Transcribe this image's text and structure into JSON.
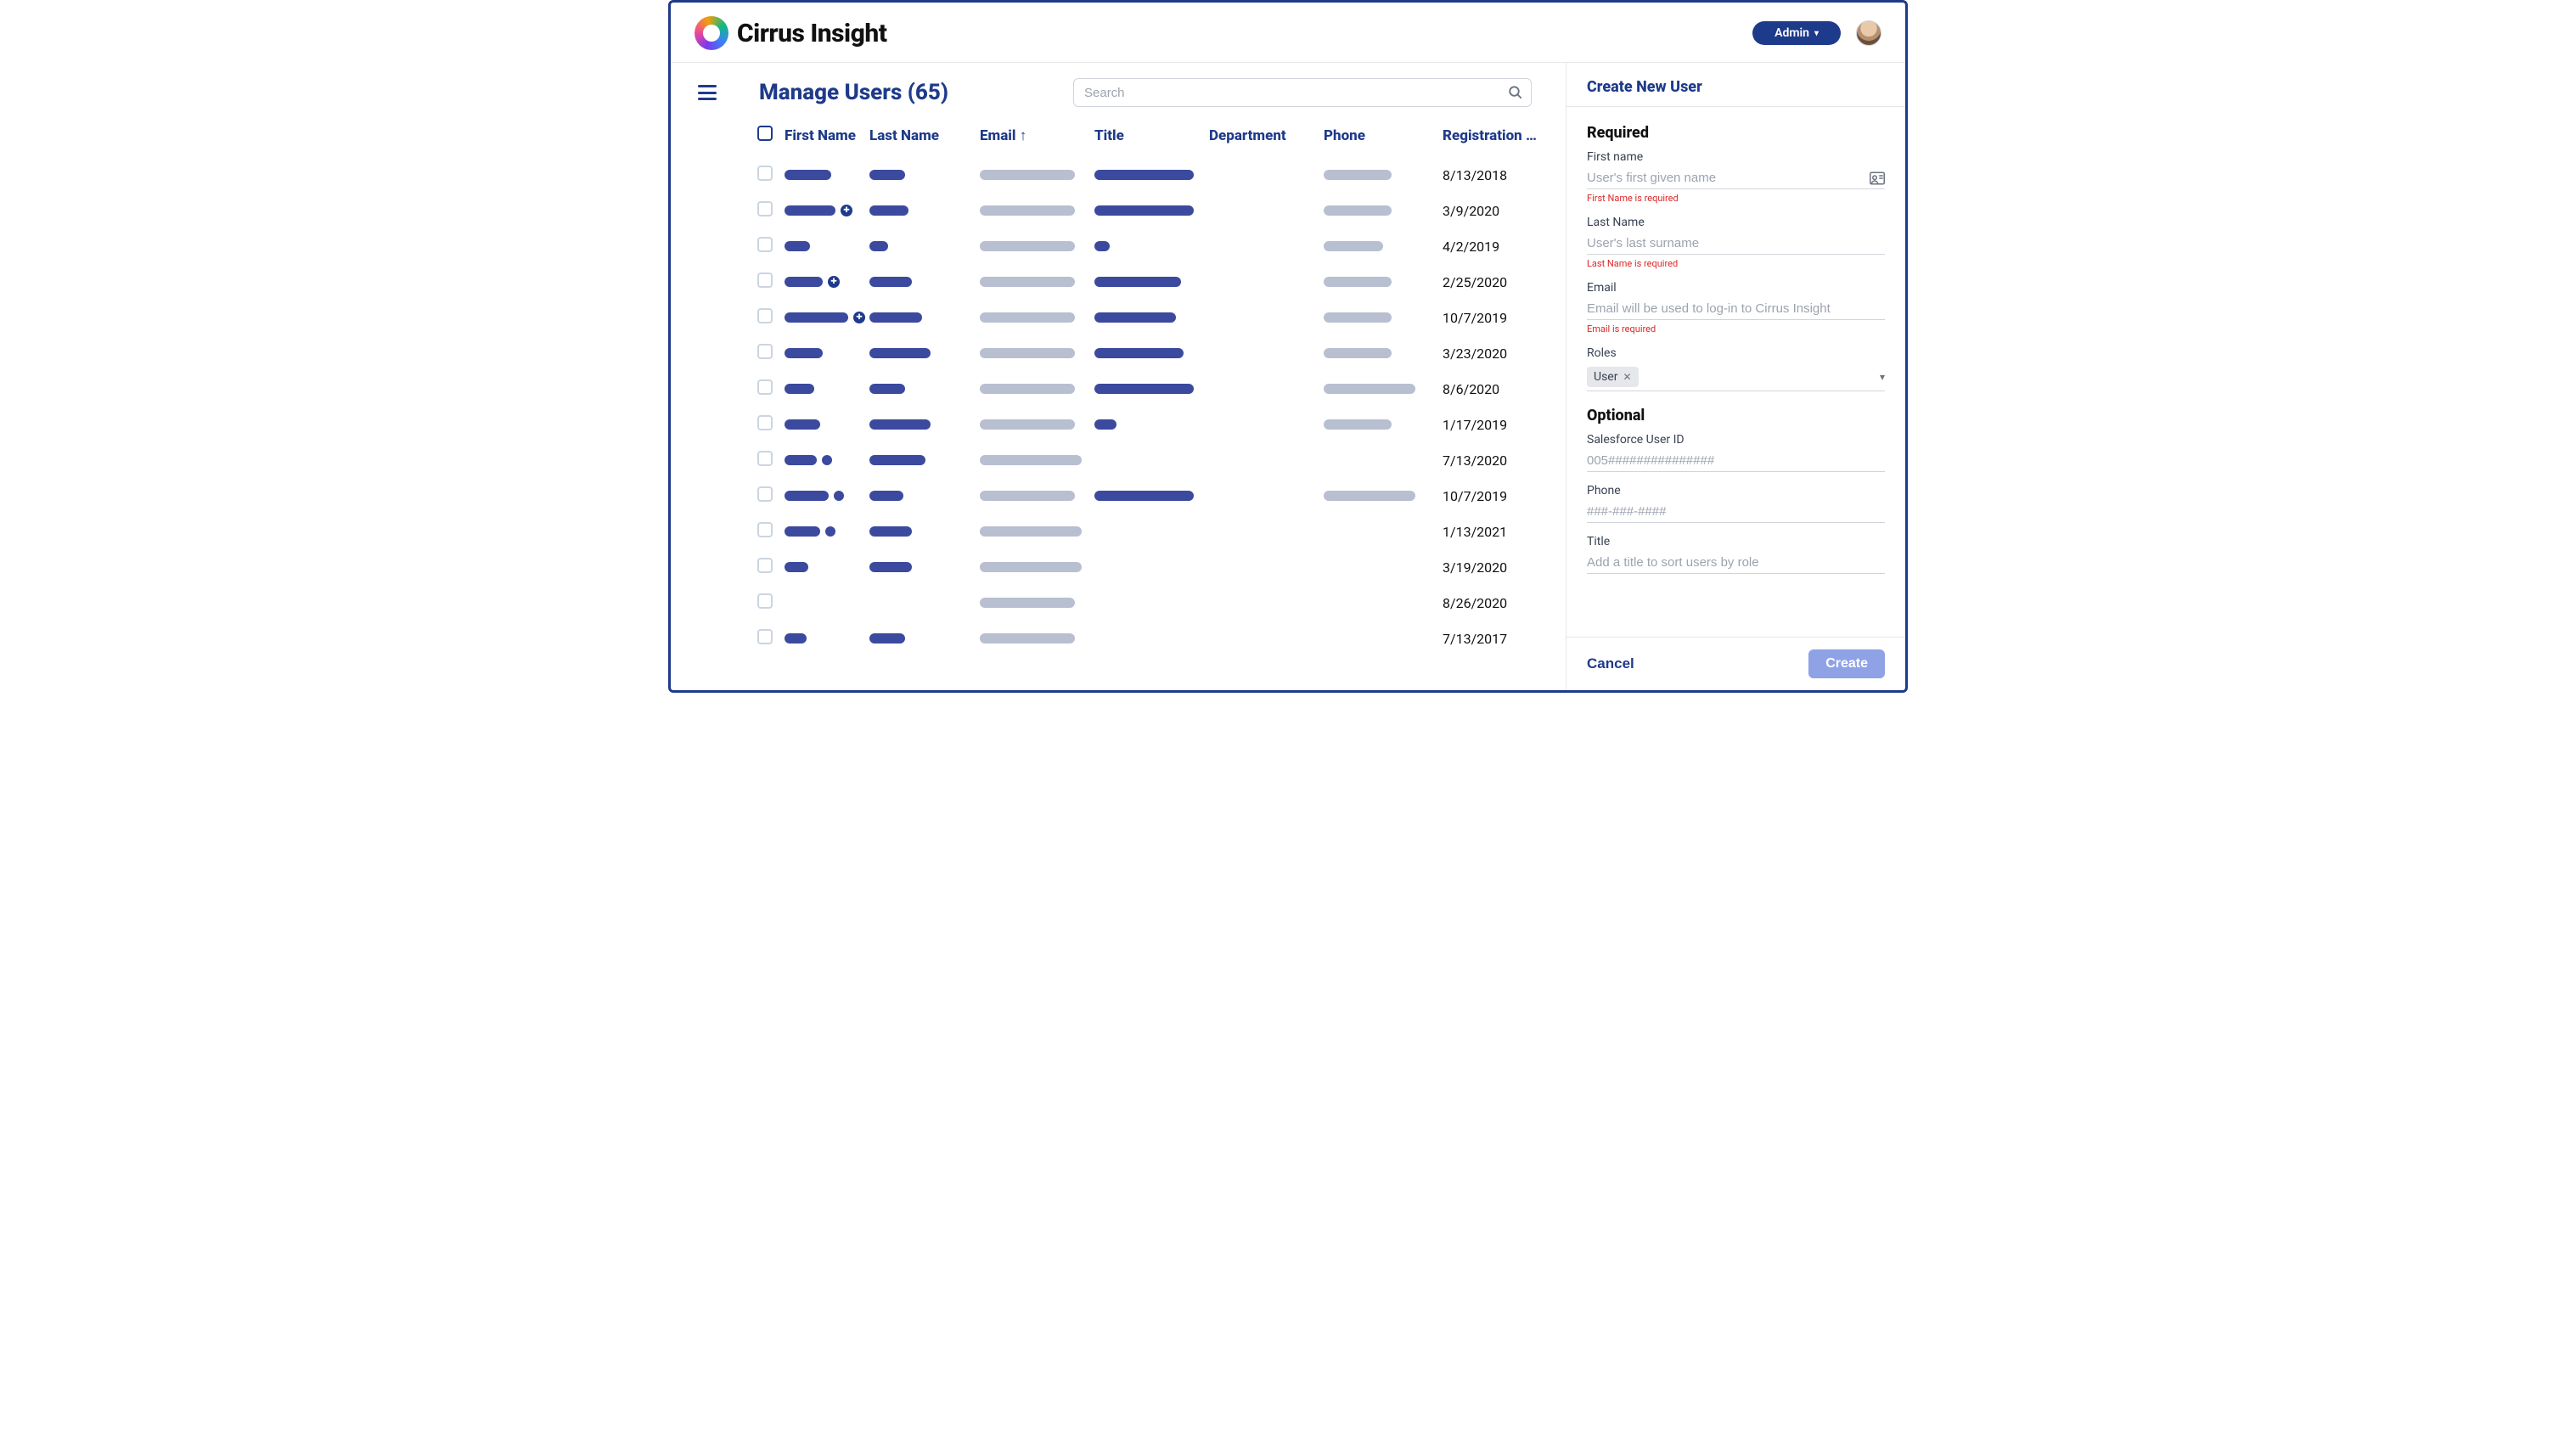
{
  "brand": {
    "name": "Cirrus Insight"
  },
  "header": {
    "admin_label": "Admin"
  },
  "page": {
    "title": "Manage Users (65)",
    "search_placeholder": "Search"
  },
  "table": {
    "columns": {
      "first_name": "First Name",
      "last_name": "Last Name",
      "email": "Email",
      "title": "Title",
      "department": "Department",
      "phone": "Phone",
      "registration": "Registration …"
    },
    "sort_column": "email",
    "bar_colors": {
      "blue": "#3b4a9e",
      "grey": "#b8bfd0"
    },
    "rows": [
      {
        "first": {
          "w": 55,
          "c": "blue",
          "icons": 0
        },
        "last": {
          "w": 42,
          "c": "blue"
        },
        "email": {
          "w": 112,
          "c": "grey"
        },
        "title": {
          "w": 117,
          "c": "blue"
        },
        "phone": {
          "w": 80,
          "c": "grey"
        },
        "reg": "8/13/2018"
      },
      {
        "first": {
          "w": 60,
          "c": "blue",
          "icons": 1
        },
        "last": {
          "w": 46,
          "c": "blue"
        },
        "email": {
          "w": 112,
          "c": "grey"
        },
        "title": {
          "w": 117,
          "c": "blue"
        },
        "phone": {
          "w": 80,
          "c": "grey"
        },
        "reg": "3/9/2020"
      },
      {
        "first": {
          "w": 30,
          "c": "blue",
          "icons": 0
        },
        "last": {
          "w": 22,
          "c": "blue"
        },
        "email": {
          "w": 112,
          "c": "grey"
        },
        "title": {
          "w": 18,
          "c": "blue"
        },
        "phone": {
          "w": 70,
          "c": "grey"
        },
        "reg": "4/2/2019"
      },
      {
        "first": {
          "w": 45,
          "c": "blue",
          "icons": 1
        },
        "last": {
          "w": 50,
          "c": "blue"
        },
        "email": {
          "w": 112,
          "c": "grey"
        },
        "title": {
          "w": 102,
          "c": "blue"
        },
        "phone": {
          "w": 80,
          "c": "grey"
        },
        "reg": "2/25/2020"
      },
      {
        "first": {
          "w": 75,
          "c": "blue",
          "icons": 1
        },
        "last": {
          "w": 62,
          "c": "blue"
        },
        "email": {
          "w": 112,
          "c": "grey"
        },
        "title": {
          "w": 96,
          "c": "blue"
        },
        "phone": {
          "w": 80,
          "c": "grey"
        },
        "reg": "10/7/2019"
      },
      {
        "first": {
          "w": 45,
          "c": "blue",
          "icons": 0
        },
        "last": {
          "w": 72,
          "c": "blue"
        },
        "email": {
          "w": 112,
          "c": "grey"
        },
        "title": {
          "w": 105,
          "c": "blue"
        },
        "phone": {
          "w": 80,
          "c": "grey"
        },
        "reg": "3/23/2020"
      },
      {
        "first": {
          "w": 35,
          "c": "blue",
          "icons": 0
        },
        "last": {
          "w": 42,
          "c": "blue"
        },
        "email": {
          "w": 112,
          "c": "grey"
        },
        "title": {
          "w": 117,
          "c": "blue"
        },
        "phone": {
          "w": 108,
          "c": "grey"
        },
        "reg": "8/6/2020"
      },
      {
        "first": {
          "w": 42,
          "c": "blue",
          "icons": 0
        },
        "last": {
          "w": 72,
          "c": "blue"
        },
        "email": {
          "w": 112,
          "c": "grey"
        },
        "title": {
          "w": 26,
          "c": "blue"
        },
        "phone": {
          "w": 80,
          "c": "grey"
        },
        "reg": "1/17/2019"
      },
      {
        "first": {
          "w": 38,
          "c": "blue",
          "icons": 0,
          "extra": 12
        },
        "last": {
          "w": 66,
          "c": "blue"
        },
        "email": {
          "w": 120,
          "c": "grey"
        },
        "title": null,
        "phone": null,
        "reg": "7/13/2020"
      },
      {
        "first": {
          "w": 52,
          "c": "blue",
          "icons": 0,
          "extra": 12
        },
        "last": {
          "w": 40,
          "c": "blue"
        },
        "email": {
          "w": 112,
          "c": "grey"
        },
        "title": {
          "w": 117,
          "c": "blue"
        },
        "phone": {
          "w": 108,
          "c": "grey"
        },
        "reg": "10/7/2019"
      },
      {
        "first": {
          "w": 42,
          "c": "blue",
          "icons": 0,
          "extra": 12
        },
        "last": {
          "w": 50,
          "c": "blue"
        },
        "email": {
          "w": 120,
          "c": "grey"
        },
        "title": null,
        "phone": null,
        "reg": "1/13/2021"
      },
      {
        "first": {
          "w": 28,
          "c": "blue",
          "icons": 0
        },
        "last": {
          "w": 50,
          "c": "blue"
        },
        "email": {
          "w": 120,
          "c": "grey"
        },
        "title": null,
        "phone": null,
        "reg": "3/19/2020"
      },
      {
        "first": null,
        "last": null,
        "email": {
          "w": 112,
          "c": "grey"
        },
        "title": null,
        "phone": null,
        "reg": "8/26/2020"
      },
      {
        "first": {
          "w": 26,
          "c": "blue",
          "icons": 0
        },
        "last": {
          "w": 42,
          "c": "blue"
        },
        "email": {
          "w": 112,
          "c": "grey"
        },
        "title": null,
        "phone": null,
        "reg": "7/13/2017"
      }
    ]
  },
  "panel": {
    "title": "Create New User",
    "required_label": "Required",
    "optional_label": "Optional",
    "fields": {
      "first_name": {
        "label": "First name",
        "placeholder": "User's first given name",
        "error": "First Name is required"
      },
      "last_name": {
        "label": "Last Name",
        "placeholder": "User's last surname",
        "error": "Last Name is required"
      },
      "email": {
        "label": "Email",
        "placeholder": "Email will be used to log-in to Cirrus Insight",
        "error": "Email is required"
      },
      "roles": {
        "label": "Roles",
        "chip": "User"
      },
      "sf_id": {
        "label": "Salesforce User ID",
        "placeholder": "005###############"
      },
      "phone": {
        "label": "Phone",
        "placeholder": "###-###-####"
      },
      "title": {
        "label": "Title",
        "placeholder": "Add a title to sort users by role"
      }
    },
    "cancel": "Cancel",
    "create": "Create"
  },
  "colors": {
    "primary": "#1e3a8a",
    "accent_soft": "#8fa2e6",
    "text": "#111111",
    "muted": "#9ca3af",
    "border": "#e5e7eb",
    "error": "#dc2626"
  }
}
